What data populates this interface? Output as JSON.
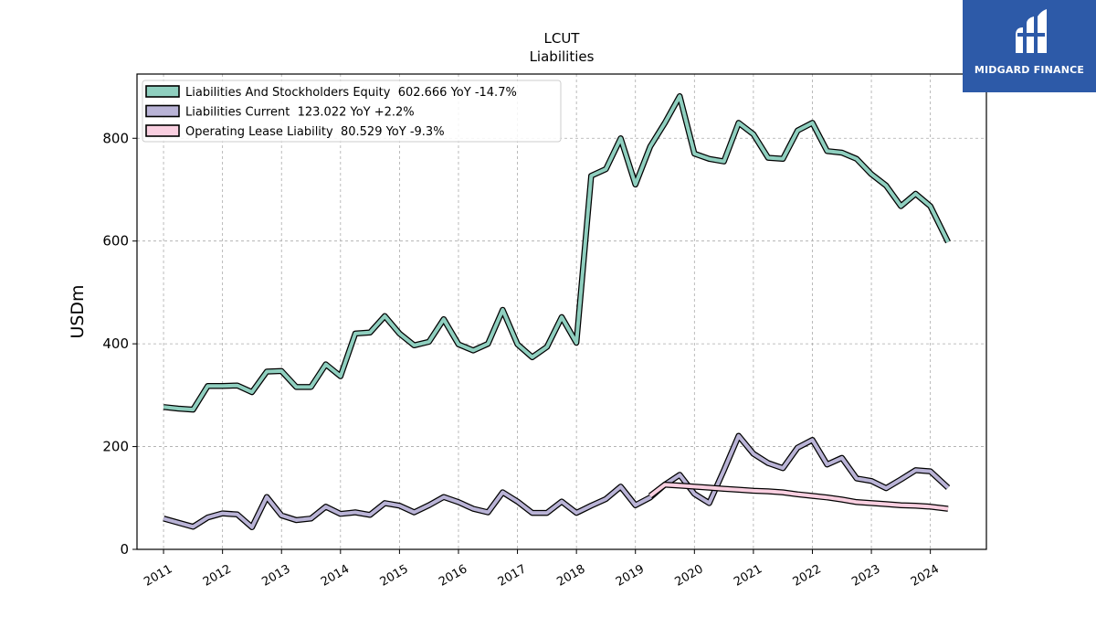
{
  "brand": {
    "name": "MIDGARD FINANCE",
    "bg_color": "#2d5aa8"
  },
  "chart_data": {
    "type": "line",
    "title": "LCUT",
    "subtitle": "Liabilities",
    "ylabel": "USDm",
    "xlabel": "",
    "ylim": [
      0,
      925
    ],
    "xlim": [
      2010.55,
      2024.95
    ],
    "yticks": [
      0,
      200,
      400,
      600,
      800
    ],
    "xtick_labels": [
      "2011",
      "2012",
      "2013",
      "2014",
      "2015",
      "2016",
      "2017",
      "2018",
      "2019",
      "2020",
      "2021",
      "2022",
      "2023",
      "2024"
    ],
    "grid": true,
    "legend_position": "top-left",
    "series": [
      {
        "name": "Liabilities And Stockholders Equity  602.666 YoY -14.7%",
        "color": "#8fcfbf",
        "x": [
          2011.0,
          2011.25,
          2011.5,
          2011.75,
          2012.0,
          2012.25,
          2012.5,
          2012.75,
          2013.0,
          2013.25,
          2013.5,
          2013.75,
          2014.0,
          2014.25,
          2014.5,
          2014.75,
          2015.0,
          2015.25,
          2015.5,
          2015.75,
          2016.0,
          2016.25,
          2016.5,
          2016.75,
          2017.0,
          2017.25,
          2017.5,
          2017.75,
          2018.0,
          2018.25,
          2018.5,
          2018.75,
          2019.0,
          2019.25,
          2019.5,
          2019.75,
          2020.0,
          2020.25,
          2020.5,
          2020.75,
          2021.0,
          2021.25,
          2021.5,
          2021.75,
          2022.0,
          2022.25,
          2022.5,
          2022.75,
          2023.0,
          2023.25,
          2023.5,
          2023.75,
          2024.0,
          2024.3
        ],
        "y": [
          277,
          274,
          272,
          318,
          318,
          319,
          306,
          346,
          347,
          316,
          316,
          360,
          337,
          420,
          422,
          454,
          420,
          397,
          404,
          448,
          399,
          387,
          400,
          466,
          399,
          374,
          394,
          452,
          402,
          727,
          740,
          800,
          710,
          784,
          830,
          882,
          770,
          760,
          755,
          830,
          808,
          762,
          760,
          815,
          830,
          775,
          772,
          760,
          730,
          708,
          668,
          692,
          668,
          598
        ]
      },
      {
        "name": "Liabilities Current  123.022 YoY +2.2%",
        "color": "#b9b3d6",
        "x": [
          2011.0,
          2011.25,
          2011.5,
          2011.75,
          2012.0,
          2012.25,
          2012.5,
          2012.75,
          2013.0,
          2013.25,
          2013.5,
          2013.75,
          2014.0,
          2014.25,
          2014.5,
          2014.75,
          2015.0,
          2015.25,
          2015.5,
          2015.75,
          2016.0,
          2016.25,
          2016.5,
          2016.75,
          2017.0,
          2017.25,
          2017.5,
          2017.75,
          2018.0,
          2018.25,
          2018.5,
          2018.75,
          2019.0,
          2019.25,
          2019.5,
          2019.75,
          2020.0,
          2020.25,
          2020.5,
          2020.75,
          2021.0,
          2021.25,
          2021.5,
          2021.75,
          2022.0,
          2022.25,
          2022.5,
          2022.75,
          2023.0,
          2023.25,
          2023.5,
          2023.75,
          2024.0,
          2024.3
        ],
        "y": [
          60,
          52,
          44,
          62,
          70,
          68,
          43,
          102,
          66,
          57,
          60,
          83,
          69,
          72,
          67,
          90,
          85,
          72,
          86,
          102,
          92,
          79,
          72,
          111,
          93,
          71,
          71,
          93,
          71,
          85,
          98,
          122,
          86,
          101,
          126,
          145,
          108,
          90,
          154,
          221,
          186,
          168,
          158,
          198,
          213,
          165,
          178,
          138,
          133,
          119,
          136,
          154,
          152,
          120
        ]
      },
      {
        "name": "Operating Lease Liability  80.529 YoY -9.3%",
        "color": "#f9cfe0",
        "x": [
          2019.25,
          2019.5,
          2019.75,
          2020.0,
          2020.25,
          2020.5,
          2020.75,
          2021.0,
          2021.25,
          2021.5,
          2021.75,
          2022.0,
          2022.25,
          2022.5,
          2022.75,
          2023.0,
          2023.25,
          2023.5,
          2023.75,
          2024.0,
          2024.3
        ],
        "y": [
          104,
          126,
          124,
          122,
          120,
          118,
          116,
          114,
          113,
          111,
          107,
          104,
          101,
          97,
          92,
          90,
          88,
          86,
          85,
          83,
          79
        ]
      }
    ]
  }
}
